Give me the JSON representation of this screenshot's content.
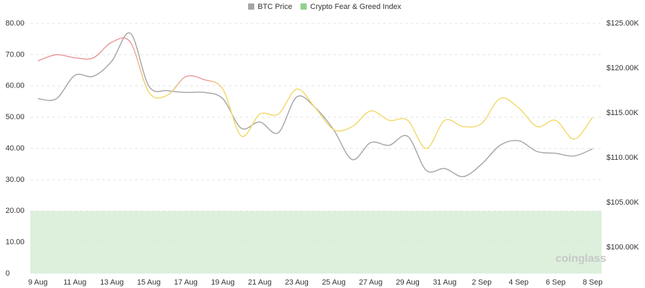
{
  "chart_data": {
    "type": "line",
    "watermark": "coinglass",
    "x": [
      "9 Aug",
      "10 Aug",
      "11 Aug",
      "12 Aug",
      "13 Aug",
      "14 Aug",
      "15 Aug",
      "16 Aug",
      "17 Aug",
      "18 Aug",
      "19 Aug",
      "20 Aug",
      "21 Aug",
      "22 Aug",
      "23 Aug",
      "24 Aug",
      "25 Aug",
      "26 Aug",
      "27 Aug",
      "28 Aug",
      "29 Aug",
      "30 Aug",
      "31 Aug",
      "1 Sep",
      "2 Sep",
      "3 Sep",
      "4 Sep",
      "5 Sep",
      "6 Sep",
      "7 Sep",
      "8 Sep"
    ],
    "x_label_every": 2,
    "series": [
      {
        "name": "BTC Price",
        "color": "#a6a6a6",
        "axis": "y2",
        "values": [
          116600,
          116600,
          119200,
          119100,
          120800,
          123900,
          118000,
          117500,
          117300,
          117300,
          116600,
          113300,
          114000,
          112800,
          116800,
          115600,
          113100,
          109800,
          111700,
          111400,
          112400,
          108600,
          108800,
          107900,
          109300,
          111400,
          111900,
          110700,
          110500,
          110200,
          111000
        ]
      },
      {
        "name": "Crypto Fear & Greed Index",
        "color": "#8fd18f",
        "greed_color": "#e89a9a",
        "neutral_color": "#f2d96b",
        "greed_from": 60,
        "values": [
          68,
          70,
          69,
          69,
          74,
          74,
          58,
          57,
          63,
          62,
          59,
          44,
          51,
          51,
          59,
          53,
          46,
          47,
          52,
          49,
          49,
          40,
          49,
          47,
          48,
          56,
          53,
          47,
          49,
          43,
          50
        ]
      }
    ],
    "fear_band": [
      0,
      20
    ],
    "fear_band_color": "#dcf0dc",
    "ylim": [
      0,
      80
    ],
    "yticks": [
      0,
      {
        "value": 10,
        "label": "10.00"
      },
      {
        "value": 20,
        "label": "20.00"
      },
      {
        "value": 30,
        "label": "30.00"
      },
      {
        "value": 40,
        "label": "40.00"
      },
      {
        "value": 50,
        "label": "50.00"
      },
      {
        "value": 60,
        "label": "60.00"
      },
      {
        "value": 70,
        "label": "70.00"
      },
      {
        "value": 80,
        "label": "80.00"
      }
    ],
    "y2lim": [
      97080,
      125000
    ],
    "y2ticks": [
      {
        "value": 100000,
        "label": "$100.00K"
      },
      {
        "value": 105000,
        "label": "$105.00K"
      },
      {
        "value": 110000,
        "label": "$110.00K"
      },
      {
        "value": 115000,
        "label": "$115.00K"
      },
      {
        "value": 120000,
        "label": "$120.00K"
      },
      {
        "value": 125000,
        "label": "$125.00K"
      }
    ],
    "grid": true
  }
}
